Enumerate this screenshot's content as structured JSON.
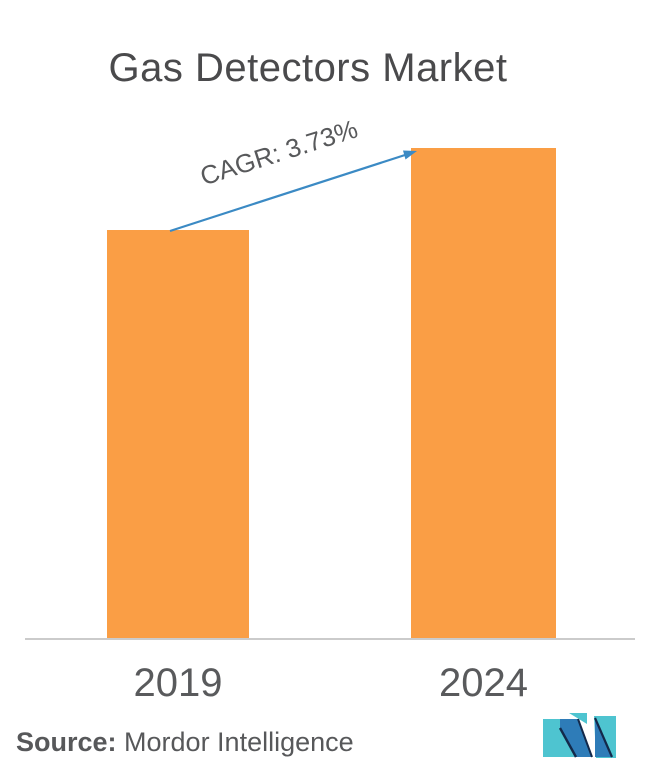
{
  "title": "Gas Detectors Market",
  "annotation": {
    "cagr_label": "CAGR: 3.73%"
  },
  "footer": {
    "source_label": "Source:",
    "source_name": "Mordor Intelligence",
    "logo_name": "mordor-intelligence-logo"
  },
  "colors": {
    "bar_orange": "#FA9E45",
    "arrow_blue": "#3B8AC4",
    "title_gray": "#4A4A4C",
    "label_gray": "#595A5C",
    "axis_gray": "#CBCBCB",
    "logo_blue": "#2E7CB8",
    "logo_teal": "#4EC4D0",
    "logo_navy": "#13294A"
  },
  "chart_data": {
    "type": "bar",
    "title": "Gas Detectors Market",
    "categories": [
      "2019",
      "2024"
    ],
    "values": [
      100,
      120
    ],
    "value_axis_visible": false,
    "value_note": "No value axis or data labels shown; values are relative indices estimated from bar heights (2024/2019 ratio ~1.20, consistent with CAGR 3.73% over 2019-2024)",
    "annotation": "CAGR: 3.73%",
    "bar_color": "#FA9E45",
    "grid": false,
    "legend": false,
    "source": "Mordor Intelligence"
  }
}
